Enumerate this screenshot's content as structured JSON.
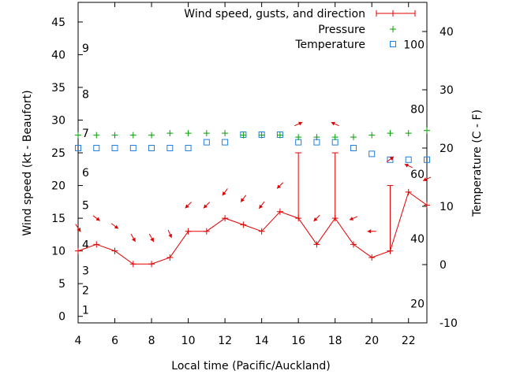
{
  "chart_data": {
    "type": "line",
    "xlabel": "Local time (Pacific/Auckland)",
    "ylabel_left": "Wind speed (kt - Beaufort)",
    "ylabel_right": "Temperature (C - F)",
    "xlim": [
      4,
      23
    ],
    "ylim_left": [
      -1,
      48
    ],
    "ylim_right": [
      -10,
      45
    ],
    "x_ticks": [
      4,
      6,
      8,
      10,
      12,
      14,
      16,
      18,
      20,
      22
    ],
    "y_left_ticks": [
      0,
      5,
      10,
      15,
      20,
      25,
      30,
      35,
      40,
      45
    ],
    "y_right_ticks": [
      -10,
      0,
      10,
      20,
      30,
      40
    ],
    "beaufort_labels": [
      {
        "text": "1",
        "y": 1
      },
      {
        "text": "2",
        "y": 4
      },
      {
        "text": "3",
        "y": 7
      },
      {
        "text": "4",
        "y": 11
      },
      {
        "text": "5",
        "y": 17
      },
      {
        "text": "6",
        "y": 22
      },
      {
        "text": "7",
        "y": 28
      },
      {
        "text": "8",
        "y": 34
      },
      {
        "text": "9",
        "y": 41
      }
    ],
    "fahrenheit_labels": [
      {
        "text": "20",
        "y": -6.67
      },
      {
        "text": "40",
        "y": 4.44
      },
      {
        "text": "60",
        "y": 15.56
      },
      {
        "text": "80",
        "y": 26.67
      },
      {
        "text": "100",
        "y": 37.78
      }
    ],
    "legend": {
      "position": "top-right",
      "entries": [
        {
          "label": "Wind speed, gusts, and direction",
          "color": "#e00000",
          "marker": "line-plus"
        },
        {
          "label": "Pressure",
          "color": "#00a000",
          "marker": "plus"
        },
        {
          "label": "Temperature",
          "color": "#2080e0",
          "marker": "square"
        }
      ]
    },
    "series": [
      {
        "name": "Wind speed, gusts, and direction",
        "color": "#e00000",
        "x": [
          4,
          5,
          6,
          7,
          8,
          9,
          10,
          11,
          12,
          13,
          14,
          15,
          16,
          17,
          18,
          19,
          20,
          21,
          22,
          23
        ],
        "y": [
          10,
          11,
          10,
          8,
          8,
          9,
          13,
          13,
          15,
          14,
          13,
          16,
          15,
          11,
          15,
          11,
          9,
          10,
          19,
          17
        ],
        "gusts": [
          null,
          null,
          null,
          null,
          null,
          null,
          null,
          null,
          null,
          null,
          null,
          null,
          25,
          null,
          25,
          null,
          null,
          20,
          null,
          null
        ],
        "direction_arrows": [
          {
            "x": 4,
            "y": 13.5,
            "dx": 0.6,
            "dy": 0.9
          },
          {
            "x": 5,
            "y": 15,
            "dx": 0.8,
            "dy": 0.6
          },
          {
            "x": 6,
            "y": 13.8,
            "dx": 0.8,
            "dy": 0.6
          },
          {
            "x": 7,
            "y": 12,
            "dx": 0.5,
            "dy": 0.9
          },
          {
            "x": 8,
            "y": 12,
            "dx": 0.5,
            "dy": 0.9
          },
          {
            "x": 9,
            "y": 12.6,
            "dx": 0.4,
            "dy": 0.9
          },
          {
            "x": 10,
            "y": 17,
            "dx": -0.7,
            "dy": 0.7
          },
          {
            "x": 11,
            "y": 17,
            "dx": -0.7,
            "dy": 0.7
          },
          {
            "x": 12,
            "y": 19,
            "dx": -0.6,
            "dy": 0.8
          },
          {
            "x": 13,
            "y": 18,
            "dx": -0.6,
            "dy": 0.8
          },
          {
            "x": 14,
            "y": 17,
            "dx": -0.6,
            "dy": 0.8
          },
          {
            "x": 15,
            "y": 20,
            "dx": -0.7,
            "dy": 0.7
          },
          {
            "x": 16,
            "y": 29.4,
            "dx": 0.9,
            "dy": -0.4
          },
          {
            "x": 17,
            "y": 15,
            "dx": -0.7,
            "dy": 0.7
          },
          {
            "x": 18,
            "y": 29.4,
            "dx": -0.9,
            "dy": -0.4
          },
          {
            "x": 19,
            "y": 15,
            "dx": -0.9,
            "dy": 0.4
          },
          {
            "x": 20,
            "y": 13,
            "dx": -1.0,
            "dy": 0.0
          },
          {
            "x": 21,
            "y": 24,
            "dx": 0.8,
            "dy": -0.6
          },
          {
            "x": 22,
            "y": 23,
            "dx": -0.9,
            "dy": -0.4
          },
          {
            "x": 23,
            "y": 21,
            "dx": -0.9,
            "dy": 0.4
          }
        ]
      },
      {
        "name": "Pressure",
        "color": "#00a000",
        "x": [
          4,
          5,
          6,
          7,
          8,
          9,
          10,
          11,
          12,
          13,
          14,
          15,
          16,
          17,
          18,
          19,
          20,
          21,
          22,
          23
        ],
        "y": [
          27.7,
          27.7,
          27.7,
          27.7,
          27.7,
          28.0,
          28.0,
          28.0,
          28.0,
          27.7,
          27.7,
          27.7,
          27.4,
          27.4,
          27.4,
          27.4,
          27.7,
          28.0,
          28.0,
          28.4
        ]
      },
      {
        "name": "Temperature",
        "color": "#2080e0",
        "axis": "right",
        "x": [
          4,
          5,
          6,
          7,
          8,
          9,
          10,
          11,
          12,
          13,
          14,
          15,
          16,
          17,
          18,
          19,
          20,
          21,
          22,
          23
        ],
        "y": [
          20,
          20,
          20,
          20,
          20,
          20,
          20,
          21,
          21,
          22.3,
          22.3,
          22.3,
          21,
          21,
          21,
          20,
          19,
          18,
          18,
          18
        ]
      }
    ]
  }
}
